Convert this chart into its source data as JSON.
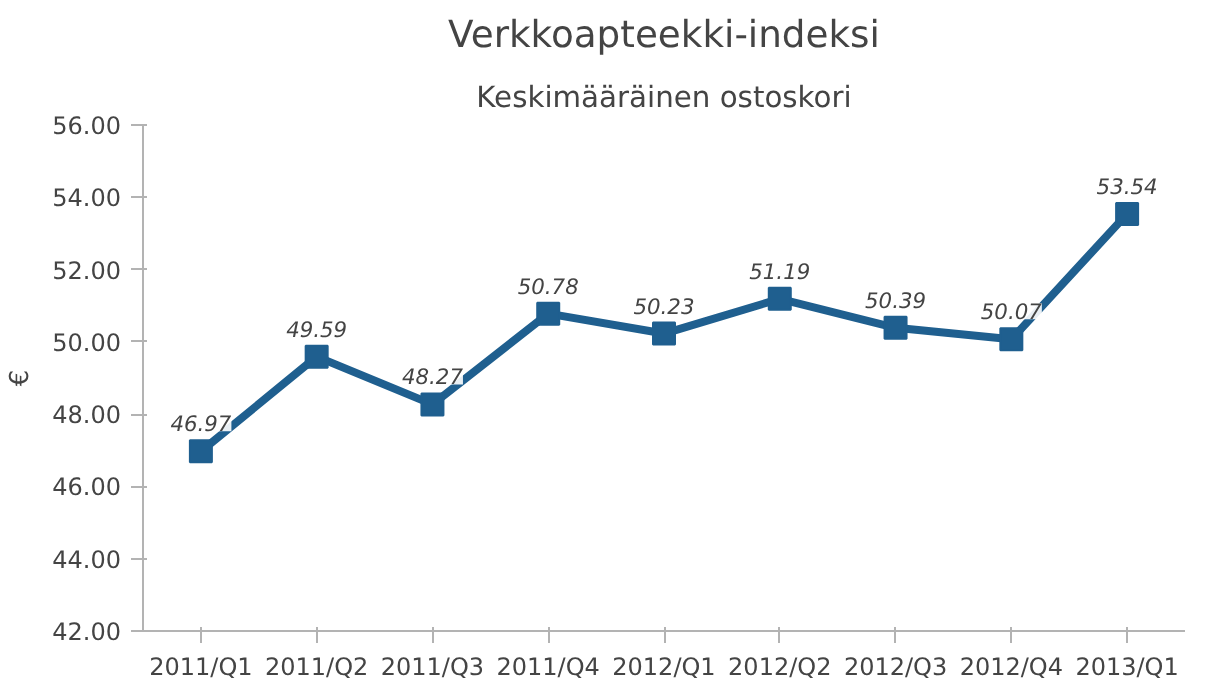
{
  "chart_data": {
    "type": "line",
    "title": "Verkkoapteekki-indeksi",
    "subtitle": "Keskimääräinen ostoskori",
    "ylabel": "€",
    "categories": [
      "2011/Q1",
      "2011/Q2",
      "2011/Q3",
      "2011/Q4",
      "2012/Q1",
      "2012/Q2",
      "2012/Q3",
      "2012/Q4",
      "2013/Q1"
    ],
    "series": [
      {
        "color": "#1f5f8f",
        "values": [
          46.97,
          49.59,
          48.27,
          50.78,
          50.23,
          51.19,
          50.39,
          50.07,
          53.54
        ]
      }
    ],
    "ylim": [
      42,
      56
    ],
    "yticks": [
      {
        "value": 42,
        "label": "42.00"
      },
      {
        "value": 44,
        "label": "44.00"
      },
      {
        "value": 46,
        "label": "46.00"
      },
      {
        "value": 48,
        "label": "48.00"
      },
      {
        "value": 50,
        "label": "50.00"
      },
      {
        "value": 52,
        "label": "52.00"
      },
      {
        "value": 54,
        "label": "54.00"
      },
      {
        "value": 56,
        "label": "56.00"
      }
    ],
    "data_labels": true,
    "marker": "square",
    "line_style": "solid"
  }
}
